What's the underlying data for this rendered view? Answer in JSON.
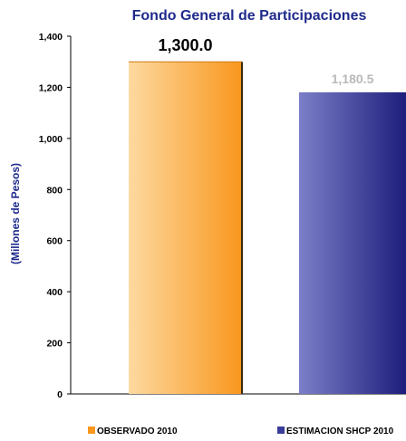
{
  "chart_data": {
    "type": "bar",
    "title": "Fondo General de Participaciones",
    "ylabel": "(Millones de Pesos)",
    "xlabel": "",
    "ylim": [
      0,
      1400
    ],
    "yticks": [
      "0",
      "200",
      "400",
      "600",
      "800",
      "1,000",
      "1,200",
      "1,400"
    ],
    "grid": false,
    "legend_position": "bottom",
    "categories": [
      "OBSERVADO 2010",
      "ESTIMACION SHCP 2010"
    ],
    "values": [
      1300.0,
      1180.5
    ],
    "data_labels": [
      "1,300.0",
      "1,180.5"
    ],
    "colors": {
      "observado_light": "#fdd9a0",
      "observado_dark": "#f9971e",
      "estimacion_light": "#7b7fc8",
      "estimacion_dark": "#1d1e7c",
      "title": "#1f2a8c",
      "estimacion_label": "#b9b9b9"
    }
  }
}
